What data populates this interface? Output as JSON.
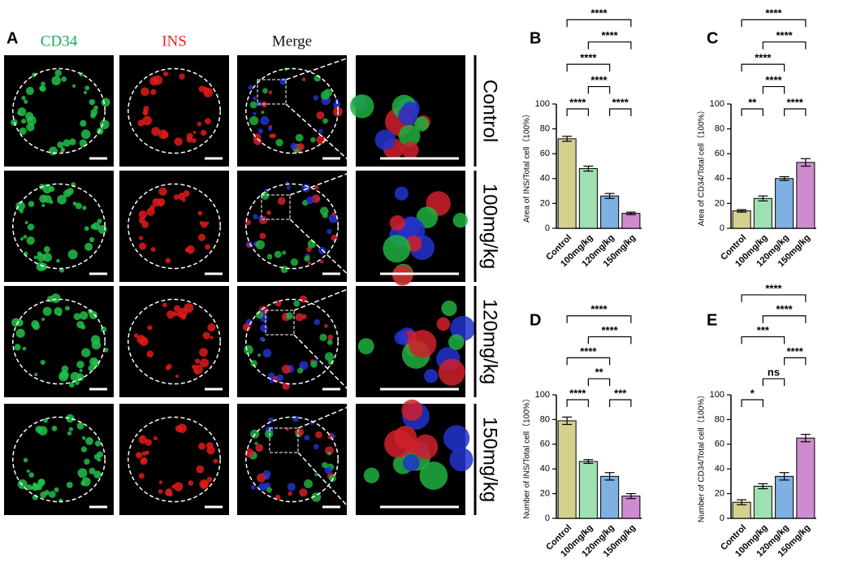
{
  "panel_a": {
    "label": "A",
    "columns": [
      "CD34",
      "INS",
      "Merge"
    ],
    "rows": [
      "Control",
      "100mg/kg",
      "120mg/kg",
      "150mg/kg"
    ]
  },
  "chart_data": [
    {
      "type": "bar",
      "panel": "B",
      "y_label": "Area of INS/Total cell（100%）",
      "categories": [
        "Control",
        "100mg/kg",
        "120mg/kg",
        "150mg/kg"
      ],
      "values": [
        72,
        48,
        26,
        12
      ],
      "errors": [
        2,
        2,
        2,
        1
      ],
      "colors": [
        "#d6d08e",
        "#9fe0b2",
        "#7eb0e2",
        "#cf8bcf"
      ],
      "ylim": [
        0,
        100
      ],
      "yticks": [
        0,
        20,
        40,
        60,
        80,
        100
      ],
      "comparisons": [
        {
          "from": "Control",
          "to": "100mg/kg",
          "label": "****"
        },
        {
          "from": "120mg/kg",
          "to": "150mg/kg",
          "label": "****"
        },
        {
          "from": "100mg/kg",
          "to": "120mg/kg",
          "label": "****"
        },
        {
          "from": "Control",
          "to": "120mg/kg",
          "label": "****"
        },
        {
          "from": "100mg/kg",
          "to": "150mg/kg",
          "label": "****"
        },
        {
          "from": "Control",
          "to": "150mg/kg",
          "label": "****"
        }
      ]
    },
    {
      "type": "bar",
      "panel": "C",
      "y_label": "Area of CD34/Total cell（100%）",
      "categories": [
        "Control",
        "100mg/kg",
        "120mg/kg",
        "150mg/kg"
      ],
      "values": [
        14,
        24,
        40,
        53
      ],
      "errors": [
        1,
        2,
        1.5,
        3
      ],
      "colors": [
        "#d6d08e",
        "#9fe0b2",
        "#7eb0e2",
        "#cf8bcf"
      ],
      "ylim": [
        0,
        100
      ],
      "yticks": [
        0,
        20,
        40,
        60,
        80,
        100
      ],
      "comparisons": [
        {
          "from": "Control",
          "to": "100mg/kg",
          "label": "**"
        },
        {
          "from": "120mg/kg",
          "to": "150mg/kg",
          "label": "****"
        },
        {
          "from": "100mg/kg",
          "to": "120mg/kg",
          "label": "****"
        },
        {
          "from": "Control",
          "to": "120mg/kg",
          "label": "****"
        },
        {
          "from": "100mg/kg",
          "to": "150mg/kg",
          "label": "****"
        },
        {
          "from": "Control",
          "to": "150mg/kg",
          "label": "****"
        }
      ]
    },
    {
      "type": "bar",
      "panel": "D",
      "y_label": "Number of INS/Total cell（100%）",
      "categories": [
        "Control",
        "100mg/kg",
        "120mg/kg",
        "150mg/kg"
      ],
      "values": [
        79,
        46,
        34,
        18
      ],
      "errors": [
        3,
        1.5,
        3,
        2
      ],
      "colors": [
        "#d6d08e",
        "#9fe0b2",
        "#7eb0e2",
        "#cf8bcf"
      ],
      "ylim": [
        0,
        100
      ],
      "yticks": [
        0,
        20,
        40,
        60,
        80,
        100
      ],
      "comparisons": [
        {
          "from": "Control",
          "to": "100mg/kg",
          "label": "****"
        },
        {
          "from": "120mg/kg",
          "to": "150mg/kg",
          "label": "***"
        },
        {
          "from": "100mg/kg",
          "to": "120mg/kg",
          "label": "**"
        },
        {
          "from": "Control",
          "to": "120mg/kg",
          "label": "****"
        },
        {
          "from": "100mg/kg",
          "to": "150mg/kg",
          "label": "****"
        },
        {
          "from": "Control",
          "to": "150mg/kg",
          "label": "****"
        }
      ]
    },
    {
      "type": "bar",
      "panel": "E",
      "y_label": "Number of CD34/Total cell（100%）",
      "categories": [
        "Control",
        "100mg/kg",
        "120mg/kg",
        "150mg/kg"
      ],
      "values": [
        13,
        26,
        34,
        65
      ],
      "errors": [
        2,
        2,
        3,
        3
      ],
      "colors": [
        "#d6d08e",
        "#9fe0b2",
        "#7eb0e2",
        "#cf8bcf"
      ],
      "ylim": [
        0,
        100
      ],
      "yticks": [
        0,
        20,
        40,
        60,
        80,
        100
      ],
      "comparisons": [
        {
          "from": "Control",
          "to": "100mg/kg",
          "label": "*"
        },
        {
          "from": "100mg/kg",
          "to": "120mg/kg",
          "label": "ns"
        },
        {
          "from": "120mg/kg",
          "to": "150mg/kg",
          "label": "****"
        },
        {
          "from": "Control",
          "to": "120mg/kg",
          "label": "***"
        },
        {
          "from": "100mg/kg",
          "to": "150mg/kg",
          "label": "****"
        },
        {
          "from": "Control",
          "to": "150mg/kg",
          "label": "****"
        }
      ]
    }
  ]
}
